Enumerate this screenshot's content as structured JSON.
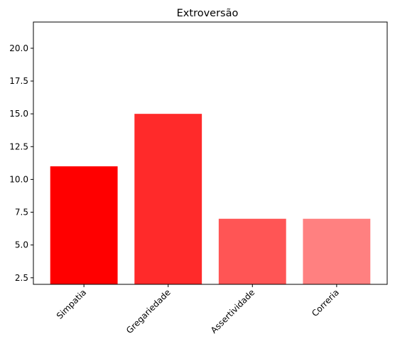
{
  "chart_data": {
    "type": "bar",
    "title": "Extroversão",
    "xlabel": "",
    "ylabel": "",
    "categories": [
      "Simpatia",
      "Gregariedade",
      "Assertividade",
      "Correria"
    ],
    "values": [
      11,
      15,
      7,
      7
    ],
    "colors": [
      "#ff0000",
      "#ff2a2a",
      "#ff5555",
      "#ff8080"
    ],
    "ylim": [
      2,
      22
    ],
    "yticks": [
      2.5,
      5.0,
      7.5,
      10.0,
      12.5,
      15.0,
      17.5,
      20.0
    ],
    "ytick_labels": [
      "2.5",
      "5.0",
      "7.5",
      "10.0",
      "12.5",
      "15.0",
      "17.5",
      "20.0"
    ],
    "grid": false,
    "legend": "none"
  }
}
